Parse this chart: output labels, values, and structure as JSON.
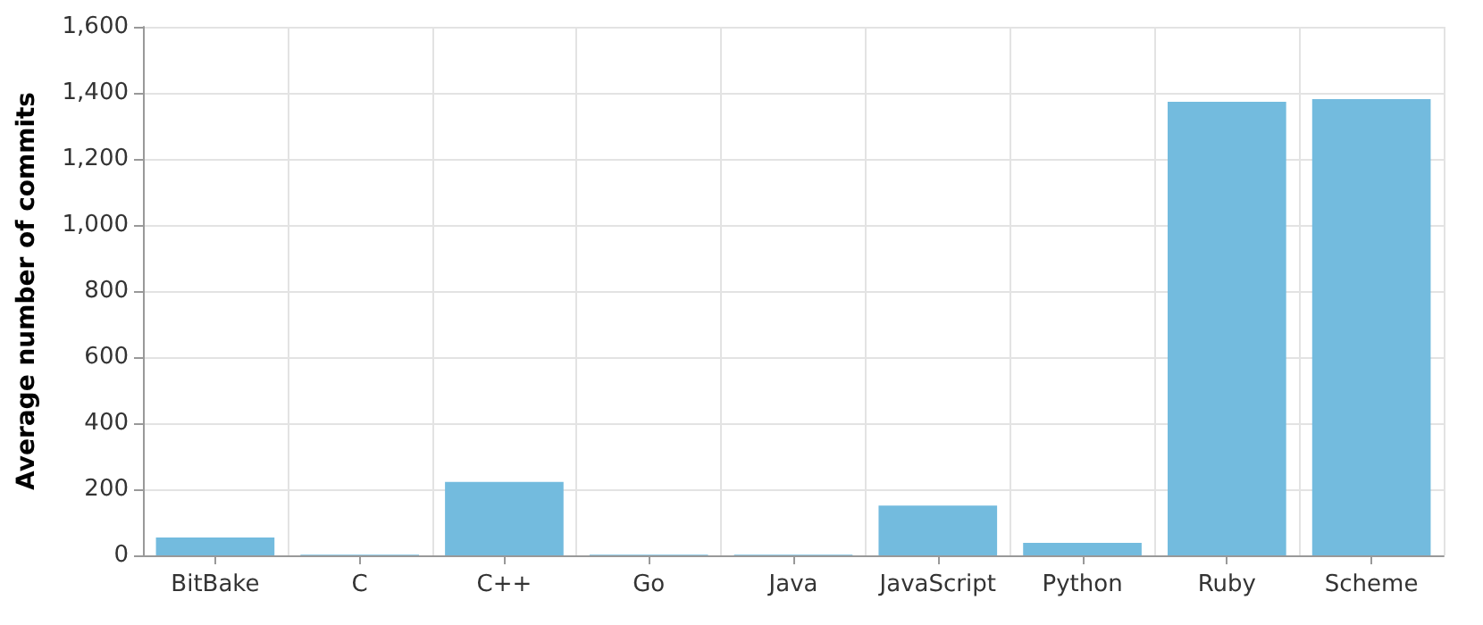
{
  "chart_data": {
    "type": "bar",
    "ylabel": "Average number of commits",
    "categories": [
      "BitBake",
      "C",
      "C++",
      "Go",
      "Java",
      "JavaScript",
      "Python",
      "Ruby",
      "Scheme"
    ],
    "values": [
      54,
      2,
      222,
      2,
      2,
      151,
      38,
      1373,
      1381
    ],
    "color": "#73bbde",
    "ylim": [
      0,
      1600
    ],
    "yticks": [
      0,
      200,
      400,
      600,
      800,
      {
        "value": 1000,
        "label": "1,000"
      },
      {
        "value": 1200,
        "label": "1,200"
      },
      {
        "value": 1400,
        "label": "1,400"
      },
      {
        "value": 1600,
        "label": "1,600"
      }
    ],
    "grid": true
  }
}
